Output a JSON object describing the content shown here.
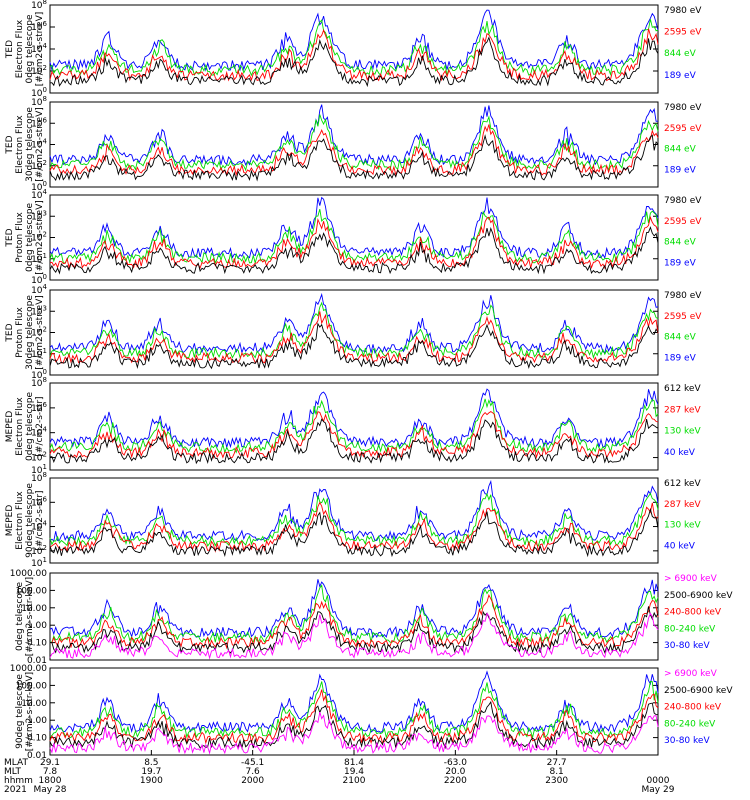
{
  "panels": [
    {
      "ylabel_lines": [
        "TED",
        "Electron Flux",
        "0deg telescope",
        "[#/cm2-s-str-eV]"
      ],
      "y_ticks": [
        {
          "exp": "0",
          "frac": 0.0
        },
        {
          "exp": "2",
          "frac": 0.25
        },
        {
          "exp": "4",
          "frac": 0.5
        },
        {
          "exp": "6",
          "frac": 0.75
        },
        {
          "exp": "8",
          "frac": 1.0
        }
      ],
      "legend": [
        {
          "label": "7980 eV",
          "color": "#000000"
        },
        {
          "label": "2595 eV",
          "color": "#ff0000"
        },
        {
          "label": "844 eV",
          "color": "#00dd00"
        },
        {
          "label": "189 eV",
          "color": "#0000ff"
        }
      ]
    },
    {
      "ylabel_lines": [
        "TED",
        "Electron Flux",
        "30deg telescope",
        "[#/cm2-s-str-eV]"
      ],
      "y_ticks": [
        {
          "exp": "0",
          "frac": 0.0
        },
        {
          "exp": "2",
          "frac": 0.25
        },
        {
          "exp": "4",
          "frac": 0.5
        },
        {
          "exp": "6",
          "frac": 0.75
        },
        {
          "exp": "8",
          "frac": 1.0
        }
      ],
      "legend": [
        {
          "label": "7980 eV",
          "color": "#000000"
        },
        {
          "label": "2595 eV",
          "color": "#ff0000"
        },
        {
          "label": "844 eV",
          "color": "#00dd00"
        },
        {
          "label": "189 eV",
          "color": "#0000ff"
        }
      ]
    },
    {
      "ylabel_lines": [
        "TED",
        "Proton Flux",
        "0deg telescope",
        "[#/cm2-s-str-eV]"
      ],
      "y_ticks": [
        {
          "exp": "0",
          "frac": 0.0
        },
        {
          "exp": "1",
          "frac": 0.25
        },
        {
          "exp": "2",
          "frac": 0.5
        },
        {
          "exp": "3",
          "frac": 0.75
        },
        {
          "exp": "4",
          "frac": 1.0
        }
      ],
      "legend": [
        {
          "label": "7980 eV",
          "color": "#000000"
        },
        {
          "label": "2595 eV",
          "color": "#ff0000"
        },
        {
          "label": "844 eV",
          "color": "#00dd00"
        },
        {
          "label": "189 eV",
          "color": "#0000ff"
        }
      ]
    },
    {
      "ylabel_lines": [
        "TED",
        "Proton Flux",
        "30deg telescope",
        "[#/cm2-s-str-eV]"
      ],
      "y_ticks": [
        {
          "exp": "0",
          "frac": 0.0
        },
        {
          "exp": "1",
          "frac": 0.25
        },
        {
          "exp": "2",
          "frac": 0.5
        },
        {
          "exp": "3",
          "frac": 0.75
        },
        {
          "exp": "4",
          "frac": 1.0
        }
      ],
      "legend": [
        {
          "label": "7980 eV",
          "color": "#000000"
        },
        {
          "label": "2595 eV",
          "color": "#ff0000"
        },
        {
          "label": "844 eV",
          "color": "#00dd00"
        },
        {
          "label": "189 eV",
          "color": "#0000ff"
        }
      ]
    },
    {
      "ylabel_lines": [
        "MEPED",
        "Electron Flux",
        "0deg telescope",
        "[#/cm2-s-str]"
      ],
      "y_ticks": [
        {
          "exp": "1",
          "frac": 0.0
        },
        {
          "exp": "2",
          "frac": 0.143
        },
        {
          "exp": "4",
          "frac": 0.429
        },
        {
          "exp": "6",
          "frac": 0.714
        },
        {
          "exp": "8",
          "frac": 1.0
        }
      ],
      "legend": [
        {
          "label": "612 keV",
          "color": "#000000"
        },
        {
          "label": "287 keV",
          "color": "#ff0000"
        },
        {
          "label": "130 keV",
          "color": "#00dd00"
        },
        {
          "label": "40 keV",
          "color": "#0000ff"
        }
      ]
    },
    {
      "ylabel_lines": [
        "MEPED",
        "Electron Flux",
        "90deg telescope",
        "[#/cm2-s-str]"
      ],
      "y_ticks": [
        {
          "exp": "1",
          "frac": 0.0
        },
        {
          "exp": "2",
          "frac": 0.143
        },
        {
          "exp": "4",
          "frac": 0.429
        },
        {
          "exp": "6",
          "frac": 0.714
        },
        {
          "exp": "8",
          "frac": 1.0
        }
      ],
      "legend": [
        {
          "label": "612 keV",
          "color": "#000000"
        },
        {
          "label": "287 keV",
          "color": "#ff0000"
        },
        {
          "label": "130 keV",
          "color": "#00dd00"
        },
        {
          "label": "40 keV",
          "color": "#0000ff"
        }
      ]
    },
    {
      "ylabel_lines": [
        "0deg telescope",
        "[#/cm2-s-str-keV]"
      ],
      "y_ticks": [
        {
          "text": "0.01",
          "frac": 0.0
        },
        {
          "text": "0.10",
          "frac": 0.2
        },
        {
          "text": "1.00",
          "frac": 0.4
        },
        {
          "text": "10.00",
          "frac": 0.6
        },
        {
          "text": "100.00",
          "frac": 0.8
        },
        {
          "text": "1000.00",
          "frac": 1.0
        }
      ],
      "legend": [
        {
          "label": "> 6900 keV",
          "color": "#ff00ff"
        },
        {
          "label": "2500-6900 keV",
          "color": "#000000"
        },
        {
          "label": "240-800 keV",
          "color": "#ff0000"
        },
        {
          "label": "80-240 keV",
          "color": "#00dd00"
        },
        {
          "label": "30-80 keV",
          "color": "#0000ff"
        }
      ]
    },
    {
      "ylabel_lines": [
        "90deg telescope",
        "[#/cm2-s-str-keV]"
      ],
      "y_ticks": [
        {
          "text": "0.01",
          "frac": 0.0
        },
        {
          "text": "0.10",
          "frac": 0.2
        },
        {
          "text": "1.00",
          "frac": 0.4
        },
        {
          "text": "10.00",
          "frac": 0.6
        },
        {
          "text": "100.00",
          "frac": 0.8
        },
        {
          "text": "1000.00",
          "frac": 1.0
        }
      ],
      "legend": [
        {
          "label": "> 6900 keV",
          "color": "#ff00ff"
        },
        {
          "label": "2500-6900 keV",
          "color": "#000000"
        },
        {
          "label": "240-800 keV",
          "color": "#ff0000"
        },
        {
          "label": "80-240 keV",
          "color": "#00dd00"
        },
        {
          "label": "30-80 keV",
          "color": "#0000ff"
        }
      ]
    }
  ],
  "x_axis": {
    "row_labels": [
      "MLAT",
      "MLT",
      "hhmm",
      "2021"
    ],
    "ticks": [
      {
        "frac": 0.0,
        "mlat": "29.1",
        "mlt": "7.8",
        "hhmm": "1800",
        "date": "May 28"
      },
      {
        "frac": 0.1667,
        "mlat": "8.5",
        "mlt": "19.7",
        "hhmm": "1900",
        "date": ""
      },
      {
        "frac": 0.3333,
        "mlat": "-45.1",
        "mlt": "7.6",
        "hhmm": "2000",
        "date": ""
      },
      {
        "frac": 0.5,
        "mlat": "81.4",
        "mlt": "19.4",
        "hhmm": "2100",
        "date": ""
      },
      {
        "frac": 0.6667,
        "mlat": "-63.0",
        "mlt": "20.0",
        "hhmm": "2200",
        "date": ""
      },
      {
        "frac": 0.8333,
        "mlat": "27.7",
        "mlt": "8.1",
        "hhmm": "2300",
        "date": ""
      },
      {
        "frac": 1.0,
        "mlat": "",
        "mlt": "",
        "hhmm": "0000",
        "date": "May 29"
      }
    ]
  },
  "chart_data": {
    "type": "line",
    "description_note": "",
    "x_range": [
      "1800",
      "0000"
    ],
    "panel_count": 8,
    "y_scale": "log"
  }
}
